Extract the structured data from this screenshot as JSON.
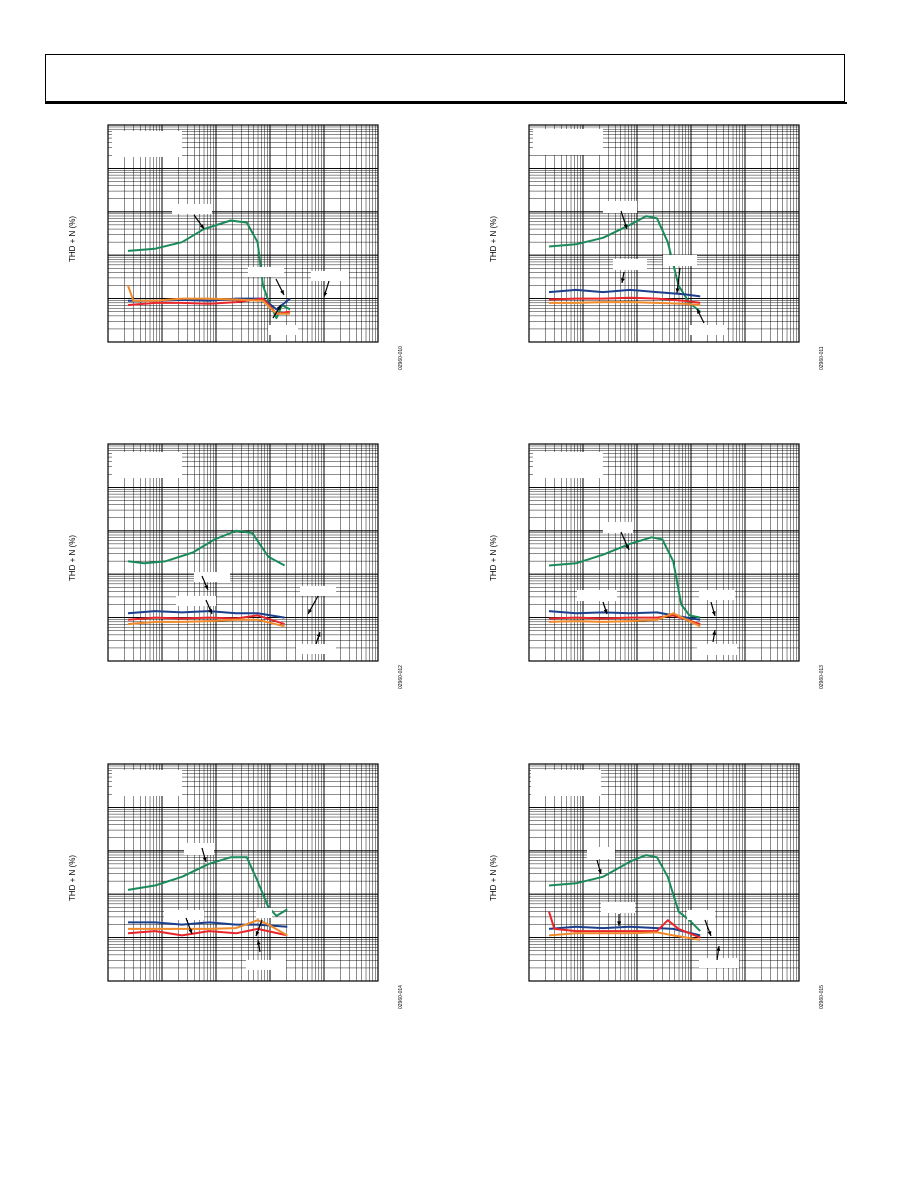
{
  "page": {
    "header": {
      "title": ""
    }
  },
  "colors": {
    "green": "#1b8a5a",
    "navy": "#1c3f8c",
    "red": "#e8262a",
    "orange": "#f08a2a",
    "grid": "#000000"
  },
  "charts": [
    {
      "ylabel": "THD + N (%)",
      "fig_id": "02960-010"
    },
    {
      "ylabel": "THD + N (%)",
      "fig_id": "02960-011"
    },
    {
      "ylabel": "THD + N (%)",
      "fig_id": "02960-012"
    },
    {
      "ylabel": "THD + N (%)",
      "fig_id": "02960-013"
    },
    {
      "ylabel": "THD + N (%)",
      "fig_id": "02960-014"
    },
    {
      "ylabel": "THD + N (%)",
      "fig_id": "02960-015"
    }
  ],
  "chart_data": [
    {
      "type": "line",
      "xscale": "log",
      "yscale": "log",
      "x_decades": 5,
      "y_decades": 5,
      "series": [
        {
          "color": "green",
          "points": [
            [
              0.0,
              2.1
            ],
            [
              0.5,
              2.15
            ],
            [
              1.0,
              2.3
            ],
            [
              1.4,
              2.6
            ],
            [
              1.9,
              2.8
            ],
            [
              2.2,
              2.75
            ],
            [
              2.4,
              2.3
            ],
            [
              2.5,
              1.3
            ],
            [
              2.6,
              0.95
            ],
            [
              2.75,
              0.55
            ],
            [
              2.85,
              0.85
            ],
            [
              3.0,
              0.75
            ]
          ]
        },
        {
          "color": "navy",
          "points": [
            [
              0.0,
              0.95
            ],
            [
              0.5,
              0.95
            ],
            [
              1.0,
              0.97
            ],
            [
              1.5,
              0.95
            ],
            [
              2.0,
              1.0
            ],
            [
              2.5,
              1.0
            ],
            [
              2.75,
              0.75
            ],
            [
              3.0,
              1.0
            ]
          ]
        },
        {
          "color": "red",
          "points": [
            [
              0.0,
              0.85
            ],
            [
              0.5,
              0.9
            ],
            [
              1.0,
              0.9
            ],
            [
              1.5,
              0.88
            ],
            [
              2.0,
              0.92
            ],
            [
              2.5,
              1.0
            ],
            [
              2.75,
              0.65
            ],
            [
              3.0,
              0.7
            ]
          ]
        },
        {
          "color": "orange",
          "points": [
            [
              0.0,
              1.3
            ],
            [
              0.1,
              0.95
            ],
            [
              0.5,
              0.95
            ],
            [
              1.0,
              1.0
            ],
            [
              1.5,
              1.0
            ],
            [
              2.0,
              0.98
            ],
            [
              2.5,
              0.95
            ],
            [
              2.75,
              0.65
            ],
            [
              3.0,
              0.65
            ]
          ]
        }
      ]
    },
    {
      "type": "line",
      "xscale": "log",
      "yscale": "log",
      "x_decades": 5,
      "y_decades": 5,
      "series": [
        {
          "color": "green",
          "points": [
            [
              0.0,
              2.2
            ],
            [
              0.5,
              2.25
            ],
            [
              1.0,
              2.4
            ],
            [
              1.5,
              2.7
            ],
            [
              1.8,
              2.9
            ],
            [
              2.0,
              2.85
            ],
            [
              2.2,
              2.3
            ],
            [
              2.4,
              1.3
            ],
            [
              2.6,
              0.9
            ],
            [
              2.8,
              0.7
            ]
          ]
        },
        {
          "color": "navy",
          "points": [
            [
              0.0,
              1.15
            ],
            [
              0.5,
              1.2
            ],
            [
              1.0,
              1.15
            ],
            [
              1.5,
              1.2
            ],
            [
              2.0,
              1.15
            ],
            [
              2.5,
              1.1
            ],
            [
              2.8,
              1.05
            ]
          ]
        },
        {
          "color": "red",
          "points": [
            [
              0.0,
              0.98
            ],
            [
              0.5,
              1.0
            ],
            [
              1.0,
              1.0
            ],
            [
              1.5,
              1.02
            ],
            [
              2.0,
              1.0
            ],
            [
              2.5,
              0.95
            ],
            [
              2.8,
              0.9
            ]
          ]
        },
        {
          "color": "orange",
          "points": [
            [
              0.0,
              0.9
            ],
            [
              0.5,
              0.9
            ],
            [
              1.0,
              0.92
            ],
            [
              1.5,
              0.92
            ],
            [
              2.0,
              0.9
            ],
            [
              2.5,
              0.88
            ],
            [
              2.8,
              0.85
            ]
          ]
        }
      ]
    },
    {
      "type": "line",
      "xscale": "log",
      "yscale": "log",
      "x_decades": 5,
      "y_decades": 5,
      "series": [
        {
          "color": "green",
          "points": [
            [
              0.0,
              2.3
            ],
            [
              0.3,
              2.25
            ],
            [
              0.7,
              2.3
            ],
            [
              1.2,
              2.5
            ],
            [
              1.6,
              2.8
            ],
            [
              2.0,
              3.0
            ],
            [
              2.3,
              2.95
            ],
            [
              2.6,
              2.4
            ],
            [
              2.9,
              2.2
            ]
          ]
        },
        {
          "color": "navy",
          "points": [
            [
              0.0,
              1.1
            ],
            [
              0.5,
              1.15
            ],
            [
              1.0,
              1.12
            ],
            [
              1.5,
              1.15
            ],
            [
              2.0,
              1.1
            ],
            [
              2.4,
              1.1
            ],
            [
              2.9,
              1.0
            ]
          ]
        },
        {
          "color": "red",
          "points": [
            [
              0.0,
              0.95
            ],
            [
              0.5,
              1.0
            ],
            [
              1.0,
              0.98
            ],
            [
              1.5,
              1.0
            ],
            [
              2.0,
              0.98
            ],
            [
              2.4,
              1.05
            ],
            [
              2.9,
              0.85
            ]
          ]
        },
        {
          "color": "orange",
          "points": [
            [
              0.0,
              0.85
            ],
            [
              0.5,
              0.9
            ],
            [
              1.0,
              0.9
            ],
            [
              1.5,
              0.92
            ],
            [
              2.0,
              0.95
            ],
            [
              2.4,
              0.95
            ],
            [
              2.9,
              0.8
            ]
          ]
        }
      ]
    },
    {
      "type": "line",
      "xscale": "log",
      "yscale": "log",
      "x_decades": 5,
      "y_decades": 5,
      "series": [
        {
          "color": "green",
          "points": [
            [
              0.0,
              2.2
            ],
            [
              0.5,
              2.25
            ],
            [
              1.0,
              2.45
            ],
            [
              1.5,
              2.7
            ],
            [
              1.9,
              2.85
            ],
            [
              2.1,
              2.8
            ],
            [
              2.3,
              2.3
            ],
            [
              2.45,
              1.3
            ],
            [
              2.6,
              1.05
            ],
            [
              2.8,
              1.0
            ]
          ]
        },
        {
          "color": "navy",
          "points": [
            [
              0.0,
              1.15
            ],
            [
              0.5,
              1.1
            ],
            [
              1.0,
              1.12
            ],
            [
              1.5,
              1.1
            ],
            [
              2.0,
              1.12
            ],
            [
              2.3,
              1.05
            ],
            [
              2.8,
              0.95
            ]
          ]
        },
        {
          "color": "red",
          "points": [
            [
              0.0,
              0.98
            ],
            [
              0.5,
              1.0
            ],
            [
              1.0,
              0.98
            ],
            [
              1.5,
              1.0
            ],
            [
              2.0,
              1.0
            ],
            [
              2.3,
              1.05
            ],
            [
              2.8,
              0.85
            ]
          ]
        },
        {
          "color": "orange",
          "points": [
            [
              0.0,
              0.9
            ],
            [
              0.5,
              0.92
            ],
            [
              1.0,
              0.9
            ],
            [
              1.5,
              0.92
            ],
            [
              2.0,
              0.95
            ],
            [
              2.3,
              1.1
            ],
            [
              2.8,
              0.8
            ]
          ]
        }
      ]
    },
    {
      "type": "line",
      "xscale": "log",
      "yscale": "log",
      "x_decades": 5,
      "y_decades": 5,
      "series": [
        {
          "color": "green",
          "points": [
            [
              0.0,
              2.1
            ],
            [
              0.5,
              2.2
            ],
            [
              1.0,
              2.4
            ],
            [
              1.5,
              2.7
            ],
            [
              1.9,
              2.85
            ],
            [
              2.2,
              2.85
            ],
            [
              2.4,
              2.3
            ],
            [
              2.6,
              1.7
            ],
            [
              2.75,
              1.5
            ],
            [
              2.95,
              1.65
            ]
          ]
        },
        {
          "color": "navy",
          "points": [
            [
              0.0,
              1.35
            ],
            [
              0.5,
              1.35
            ],
            [
              1.0,
              1.3
            ],
            [
              1.5,
              1.35
            ],
            [
              2.0,
              1.3
            ],
            [
              2.4,
              1.3
            ],
            [
              2.95,
              1.25
            ]
          ]
        },
        {
          "color": "red",
          "points": [
            [
              0.0,
              1.1
            ],
            [
              0.5,
              1.15
            ],
            [
              1.0,
              1.05
            ],
            [
              1.5,
              1.15
            ],
            [
              2.0,
              1.1
            ],
            [
              2.4,
              1.2
            ],
            [
              2.95,
              1.05
            ]
          ]
        },
        {
          "color": "orange",
          "points": [
            [
              0.0,
              1.2
            ],
            [
              0.5,
              1.2
            ],
            [
              1.0,
              1.2
            ],
            [
              1.5,
              1.2
            ],
            [
              2.0,
              1.22
            ],
            [
              2.4,
              1.4
            ],
            [
              2.6,
              1.3
            ],
            [
              2.95,
              1.05
            ]
          ]
        }
      ]
    },
    {
      "type": "line",
      "xscale": "log",
      "yscale": "log",
      "x_decades": 5,
      "y_decades": 5,
      "series": [
        {
          "color": "green",
          "points": [
            [
              0.0,
              2.2
            ],
            [
              0.5,
              2.25
            ],
            [
              1.0,
              2.4
            ],
            [
              1.5,
              2.75
            ],
            [
              1.8,
              2.9
            ],
            [
              2.0,
              2.85
            ],
            [
              2.2,
              2.4
            ],
            [
              2.4,
              1.6
            ],
            [
              2.6,
              1.4
            ],
            [
              2.8,
              1.15
            ]
          ]
        },
        {
          "color": "navy",
          "points": [
            [
              0.0,
              1.2
            ],
            [
              0.5,
              1.25
            ],
            [
              1.0,
              1.22
            ],
            [
              1.5,
              1.25
            ],
            [
              2.0,
              1.22
            ],
            [
              2.3,
              1.2
            ],
            [
              2.8,
              1.05
            ]
          ]
        },
        {
          "color": "red",
          "points": [
            [
              0.0,
              1.6
            ],
            [
              0.1,
              1.2
            ],
            [
              0.5,
              1.15
            ],
            [
              1.0,
              1.15
            ],
            [
              1.5,
              1.15
            ],
            [
              2.0,
              1.15
            ],
            [
              2.2,
              1.4
            ],
            [
              2.4,
              1.2
            ],
            [
              2.8,
              1.0
            ]
          ]
        },
        {
          "color": "orange",
          "points": [
            [
              0.0,
              1.05
            ],
            [
              0.5,
              1.1
            ],
            [
              1.0,
              1.1
            ],
            [
              1.5,
              1.1
            ],
            [
              2.0,
              1.12
            ],
            [
              2.3,
              1.05
            ],
            [
              2.8,
              0.95
            ]
          ]
        }
      ]
    }
  ]
}
